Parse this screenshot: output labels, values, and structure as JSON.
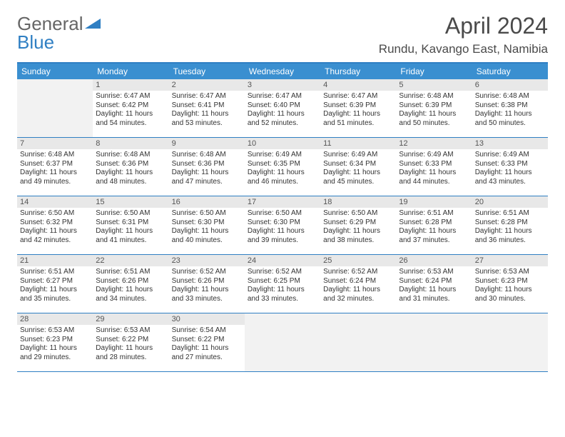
{
  "brand": {
    "part1": "General",
    "part2": "Blue",
    "accent": "#2f7fc3"
  },
  "title": "April 2024",
  "location": "Rundu, Kavango East, Namibia",
  "colors": {
    "header_bg": "#3a8fd0",
    "header_text": "#ffffff",
    "border": "#2f7fc3",
    "daynum_bg": "#e8e8e8",
    "empty_bg": "#f2f2f2",
    "text": "#333333"
  },
  "weekdays": [
    "Sunday",
    "Monday",
    "Tuesday",
    "Wednesday",
    "Thursday",
    "Friday",
    "Saturday"
  ],
  "leading_blanks": 1,
  "days": [
    {
      "n": 1,
      "sunrise": "6:47 AM",
      "sunset": "6:42 PM",
      "daylight": "11 hours and 54 minutes."
    },
    {
      "n": 2,
      "sunrise": "6:47 AM",
      "sunset": "6:41 PM",
      "daylight": "11 hours and 53 minutes."
    },
    {
      "n": 3,
      "sunrise": "6:47 AM",
      "sunset": "6:40 PM",
      "daylight": "11 hours and 52 minutes."
    },
    {
      "n": 4,
      "sunrise": "6:47 AM",
      "sunset": "6:39 PM",
      "daylight": "11 hours and 51 minutes."
    },
    {
      "n": 5,
      "sunrise": "6:48 AM",
      "sunset": "6:39 PM",
      "daylight": "11 hours and 50 minutes."
    },
    {
      "n": 6,
      "sunrise": "6:48 AM",
      "sunset": "6:38 PM",
      "daylight": "11 hours and 50 minutes."
    },
    {
      "n": 7,
      "sunrise": "6:48 AM",
      "sunset": "6:37 PM",
      "daylight": "11 hours and 49 minutes."
    },
    {
      "n": 8,
      "sunrise": "6:48 AM",
      "sunset": "6:36 PM",
      "daylight": "11 hours and 48 minutes."
    },
    {
      "n": 9,
      "sunrise": "6:48 AM",
      "sunset": "6:36 PM",
      "daylight": "11 hours and 47 minutes."
    },
    {
      "n": 10,
      "sunrise": "6:49 AM",
      "sunset": "6:35 PM",
      "daylight": "11 hours and 46 minutes."
    },
    {
      "n": 11,
      "sunrise": "6:49 AM",
      "sunset": "6:34 PM",
      "daylight": "11 hours and 45 minutes."
    },
    {
      "n": 12,
      "sunrise": "6:49 AM",
      "sunset": "6:33 PM",
      "daylight": "11 hours and 44 minutes."
    },
    {
      "n": 13,
      "sunrise": "6:49 AM",
      "sunset": "6:33 PM",
      "daylight": "11 hours and 43 minutes."
    },
    {
      "n": 14,
      "sunrise": "6:50 AM",
      "sunset": "6:32 PM",
      "daylight": "11 hours and 42 minutes."
    },
    {
      "n": 15,
      "sunrise": "6:50 AM",
      "sunset": "6:31 PM",
      "daylight": "11 hours and 41 minutes."
    },
    {
      "n": 16,
      "sunrise": "6:50 AM",
      "sunset": "6:30 PM",
      "daylight": "11 hours and 40 minutes."
    },
    {
      "n": 17,
      "sunrise": "6:50 AM",
      "sunset": "6:30 PM",
      "daylight": "11 hours and 39 minutes."
    },
    {
      "n": 18,
      "sunrise": "6:50 AM",
      "sunset": "6:29 PM",
      "daylight": "11 hours and 38 minutes."
    },
    {
      "n": 19,
      "sunrise": "6:51 AM",
      "sunset": "6:28 PM",
      "daylight": "11 hours and 37 minutes."
    },
    {
      "n": 20,
      "sunrise": "6:51 AM",
      "sunset": "6:28 PM",
      "daylight": "11 hours and 36 minutes."
    },
    {
      "n": 21,
      "sunrise": "6:51 AM",
      "sunset": "6:27 PM",
      "daylight": "11 hours and 35 minutes."
    },
    {
      "n": 22,
      "sunrise": "6:51 AM",
      "sunset": "6:26 PM",
      "daylight": "11 hours and 34 minutes."
    },
    {
      "n": 23,
      "sunrise": "6:52 AM",
      "sunset": "6:26 PM",
      "daylight": "11 hours and 33 minutes."
    },
    {
      "n": 24,
      "sunrise": "6:52 AM",
      "sunset": "6:25 PM",
      "daylight": "11 hours and 33 minutes."
    },
    {
      "n": 25,
      "sunrise": "6:52 AM",
      "sunset": "6:24 PM",
      "daylight": "11 hours and 32 minutes."
    },
    {
      "n": 26,
      "sunrise": "6:53 AM",
      "sunset": "6:24 PM",
      "daylight": "11 hours and 31 minutes."
    },
    {
      "n": 27,
      "sunrise": "6:53 AM",
      "sunset": "6:23 PM",
      "daylight": "11 hours and 30 minutes."
    },
    {
      "n": 28,
      "sunrise": "6:53 AM",
      "sunset": "6:23 PM",
      "daylight": "11 hours and 29 minutes."
    },
    {
      "n": 29,
      "sunrise": "6:53 AM",
      "sunset": "6:22 PM",
      "daylight": "11 hours and 28 minutes."
    },
    {
      "n": 30,
      "sunrise": "6:54 AM",
      "sunset": "6:22 PM",
      "daylight": "11 hours and 27 minutes."
    }
  ],
  "labels": {
    "sunrise": "Sunrise:",
    "sunset": "Sunset:",
    "daylight": "Daylight:"
  }
}
